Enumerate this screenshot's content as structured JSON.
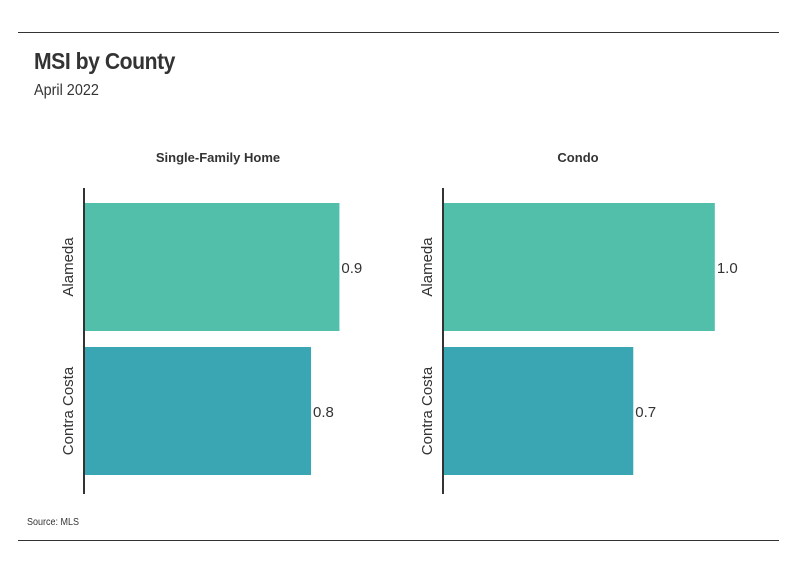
{
  "header": {
    "title": "MSI by County",
    "subtitle": "April 2022"
  },
  "footer": {
    "source": "Source:  MLS"
  },
  "colors": {
    "alameda": "#52bfab",
    "contra_costa": "#3ba6b3",
    "axis": "#333333",
    "text": "#333333"
  },
  "chart_data": [
    {
      "type": "bar",
      "orientation": "horizontal",
      "title": "Single-Family Home",
      "categories": [
        "Alameda",
        "Contra Costa"
      ],
      "values": [
        0.9,
        0.8
      ],
      "value_labels": [
        "0.9",
        "0.8"
      ],
      "xlim": [
        0,
        1.05
      ],
      "grid": false
    },
    {
      "type": "bar",
      "orientation": "horizontal",
      "title": "Condo",
      "categories": [
        "Alameda",
        "Contra Costa"
      ],
      "values": [
        1.0,
        0.7
      ],
      "value_labels": [
        "1.0",
        "0.7"
      ],
      "xlim": [
        0,
        1.1
      ],
      "grid": false
    }
  ]
}
